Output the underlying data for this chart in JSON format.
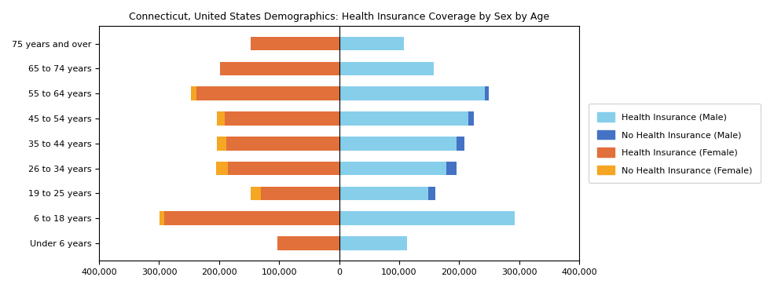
{
  "title": "Connecticut, United States Demographics: Health Insurance Coverage by Sex by Age",
  "age_groups": [
    "Under 6 years",
    "6 to 18 years",
    "19 to 25 years",
    "26 to 34 years",
    "35 to 44 years",
    "45 to 54 years",
    "55 to 64 years",
    "65 to 74 years",
    "75 years and over"
  ],
  "health_ins_male": [
    113000,
    293000,
    148000,
    178000,
    195000,
    215000,
    243000,
    158000,
    108000
  ],
  "no_health_ins_male": [
    0,
    0,
    12000,
    18000,
    14000,
    9000,
    6000,
    0,
    0
  ],
  "health_ins_female": [
    103000,
    292000,
    130000,
    185000,
    188000,
    190000,
    238000,
    198000,
    148000
  ],
  "no_health_ins_female": [
    0,
    7000,
    17000,
    20000,
    16000,
    14000,
    9000,
    0,
    0
  ],
  "color_health_male": "#87CEEB",
  "color_no_health_male": "#4472C4",
  "color_health_female": "#E2703A",
  "color_no_health_female": "#F5A623",
  "xlim": 400000,
  "legend_labels": [
    "Health Insurance (Male)",
    "No Health Insurance (Male)",
    "Health Insurance (Female)",
    "No Health Insurance (Female)"
  ]
}
